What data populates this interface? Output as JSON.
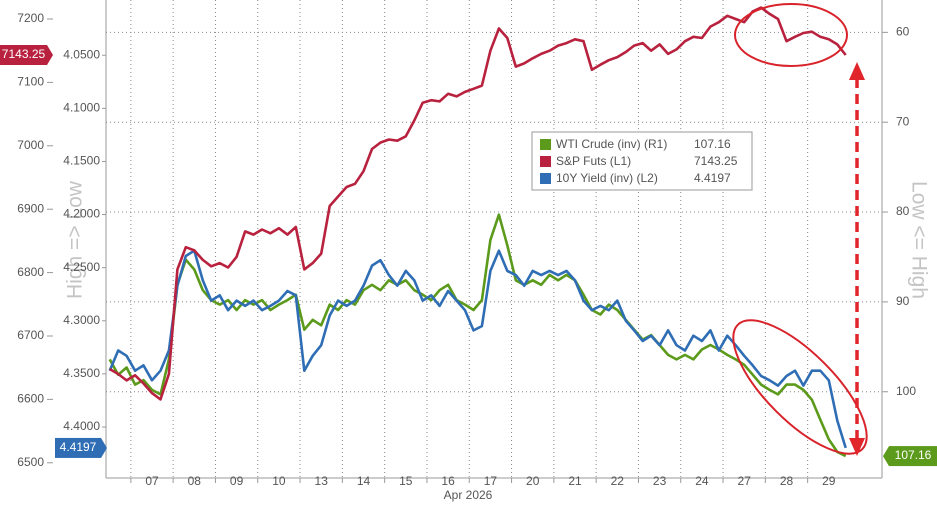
{
  "chart_data": {
    "type": "line",
    "xlabel": "Apr 2026",
    "categories": [
      null,
      null,
      null,
      null,
      null,
      "07",
      null,
      null,
      null,
      null,
      "08",
      null,
      null,
      null,
      null,
      "09",
      null,
      null,
      null,
      null,
      "10",
      null,
      null,
      null,
      null,
      "13",
      null,
      null,
      null,
      null,
      "14",
      null,
      null,
      null,
      null,
      "15",
      null,
      null,
      null,
      null,
      "16",
      null,
      null,
      null,
      null,
      "17",
      null,
      null,
      null,
      null,
      "20",
      null,
      null,
      null,
      null,
      "21",
      null,
      null,
      null,
      null,
      "22",
      null,
      null,
      null,
      null,
      "23",
      null,
      null,
      null,
      null,
      "24",
      null,
      null,
      null,
      null,
      "27",
      null,
      null,
      null,
      null,
      "28",
      null,
      null,
      null,
      null,
      "29",
      null,
      null
    ],
    "ylim": [
      6476,
      7230
    ],
    "yticks": [
      6500,
      6600,
      6700,
      6800,
      6900,
      7000,
      7100,
      7200
    ],
    "y2lim": [
      56.4,
      109.6
    ],
    "y2ticks": [
      60,
      70,
      80,
      90,
      100
    ],
    "y2_inverted": true,
    "y3lim": [
      3.998,
      4.448
    ],
    "y3ticks": [
      {
        "value": 4.05,
        "label": "4.0500"
      },
      {
        "value": 4.1,
        "label": "4.1000"
      },
      {
        "value": 4.15,
        "label": "4.1500"
      },
      {
        "value": 4.2,
        "label": "4.2000"
      },
      {
        "value": 4.25,
        "label": "4.2500"
      },
      {
        "value": 4.3,
        "label": "4.3000"
      },
      {
        "value": 4.35,
        "label": "4.3500"
      },
      {
        "value": 4.4,
        "label": "4.4000"
      }
    ],
    "y3_inverted": true,
    "ylabel": "High => Low",
    "y2label": "Low <= High",
    "grid": true,
    "series": [
      {
        "name": "WTI Crude (inv) (R1)",
        "color": "#5b9a1b",
        "axis": "y2",
        "values": [
          96.4,
          98.1,
          97.3,
          99.2,
          98.7,
          99.8,
          100.3,
          96.4,
          88.1,
          85.3,
          86.4,
          88.7,
          89.8,
          90.3,
          89.8,
          90.9,
          89.8,
          90.3,
          89.8,
          90.9,
          90.3,
          89.8,
          89.2,
          93.1,
          92,
          92.6,
          90.3,
          90.9,
          89.8,
          90.3,
          88.7,
          88.1,
          88.7,
          87.6,
          88.1,
          87.6,
          88.7,
          89.2,
          89.8,
          88.7,
          88.1,
          89.8,
          90.3,
          90.9,
          89.8,
          83.1,
          80.3,
          83.7,
          87.6,
          88.1,
          87.6,
          88.1,
          87,
          87.6,
          87,
          87.6,
          89.2,
          90.9,
          91.4,
          90.3,
          90.9,
          92,
          93.1,
          94.2,
          93.7,
          94.8,
          95.9,
          96.4,
          95.9,
          96.4,
          95.3,
          94.8,
          95.3,
          95.9,
          96.4,
          97,
          98.1,
          99.2,
          99.8,
          100.3,
          99.2,
          99.2,
          99.8,
          100.9,
          103.1,
          105.3,
          106.7,
          107.16
        ]
      },
      {
        "name": "S&P Futs (L1)",
        "color": "#b8223f",
        "values": [
          6648,
          6640,
          6630,
          6638,
          6625,
          6610,
          6600,
          6640,
          6805,
          6840,
          6835,
          6820,
          6810,
          6815,
          6808,
          6825,
          6865,
          6860,
          6868,
          6862,
          6870,
          6860,
          6872,
          6805,
          6815,
          6830,
          6905,
          6920,
          6935,
          6940,
          6960,
          6995,
          7005,
          7010,
          7008,
          7015,
          7040,
          7068,
          7072,
          7070,
          7082,
          7078,
          7085,
          7090,
          7095,
          7150,
          7185,
          7170,
          7125,
          7130,
          7138,
          7145,
          7150,
          7158,
          7162,
          7168,
          7165,
          7120,
          7128,
          7135,
          7140,
          7148,
          7158,
          7162,
          7150,
          7160,
          7145,
          7152,
          7165,
          7172,
          7170,
          7188,
          7195,
          7205,
          7200,
          7195,
          7212,
          7218,
          7208,
          7200,
          7165,
          7172,
          7178,
          7180,
          7172,
          7168,
          7160,
          7143.25
        ]
      },
      {
        "name": "10Y Yield (inv) (L2)",
        "color": "#2f6eb5",
        "axis": "y3",
        "values": [
          4.347,
          4.328,
          4.333,
          4.347,
          4.342,
          4.356,
          4.347,
          4.328,
          4.267,
          4.239,
          4.234,
          4.262,
          4.281,
          4.276,
          4.29,
          4.281,
          4.286,
          4.281,
          4.29,
          4.286,
          4.281,
          4.272,
          4.276,
          4.347,
          4.333,
          4.323,
          4.295,
          4.281,
          4.286,
          4.281,
          4.267,
          4.248,
          4.243,
          4.257,
          4.267,
          4.253,
          4.262,
          4.281,
          4.276,
          4.286,
          4.272,
          4.281,
          4.29,
          4.309,
          4.305,
          4.253,
          4.234,
          4.253,
          4.257,
          4.267,
          4.253,
          4.257,
          4.253,
          4.257,
          4.253,
          4.262,
          4.281,
          4.29,
          4.286,
          4.29,
          4.281,
          4.3,
          4.309,
          4.319,
          4.314,
          4.323,
          4.309,
          4.323,
          4.328,
          4.314,
          4.319,
          4.309,
          4.328,
          4.314,
          4.323,
          4.333,
          4.342,
          4.352,
          4.356,
          4.361,
          4.352,
          4.347,
          4.361,
          4.347,
          4.347,
          4.356,
          4.394,
          4.4197
        ]
      }
    ]
  }
}
